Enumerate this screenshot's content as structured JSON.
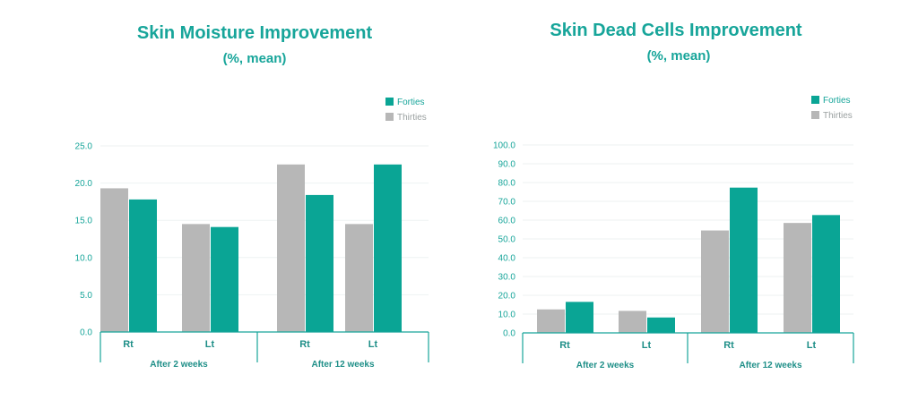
{
  "colors": {
    "forties": "#0aa595",
    "thirties": "#b7b7b7",
    "accent": "#17a59a",
    "grid": "#eef2f2"
  },
  "chart_data": [
    {
      "type": "bar",
      "title": "Skin Moisture Improvement",
      "subtitle": "(%, mean)",
      "categories": [
        "Rt",
        "Lt",
        "Rt",
        "Lt"
      ],
      "groups": [
        "After 2 weeks",
        "After 12 weeks"
      ],
      "series": [
        {
          "name": "Thirties",
          "values": [
            19.3,
            14.5,
            22.5,
            14.5
          ]
        },
        {
          "name": "Forties",
          "values": [
            17.8,
            14.1,
            18.4,
            22.5
          ]
        }
      ],
      "legend": [
        "Forties",
        "Thirties"
      ],
      "legend_position": "top-right",
      "ylim": [
        0,
        25
      ],
      "yticks": [
        "0.0",
        "5.0",
        "10.0",
        "15.0",
        "20.0",
        "25.0"
      ],
      "grid": true
    },
    {
      "type": "bar",
      "title": "Skin Dead Cells Improvement",
      "subtitle": "(%, mean)",
      "categories": [
        "Rt",
        "Lt",
        "Rt",
        "Lt"
      ],
      "groups": [
        "After 2 weeks",
        "After 12 weeks"
      ],
      "series": [
        {
          "name": "Thirties",
          "values": [
            12.5,
            11.7,
            54.5,
            58.5
          ]
        },
        {
          "name": "Forties",
          "values": [
            16.5,
            8.2,
            77.3,
            62.7
          ]
        }
      ],
      "legend": [
        "Forties",
        "Thirties"
      ],
      "legend_position": "top-right",
      "ylim": [
        0,
        100
      ],
      "yticks": [
        "0.0",
        "10.0",
        "20.0",
        "30.0",
        "40.0",
        "50.0",
        "60.0",
        "70.0",
        "80.0",
        "90.0",
        "100.0"
      ],
      "grid": true
    }
  ]
}
